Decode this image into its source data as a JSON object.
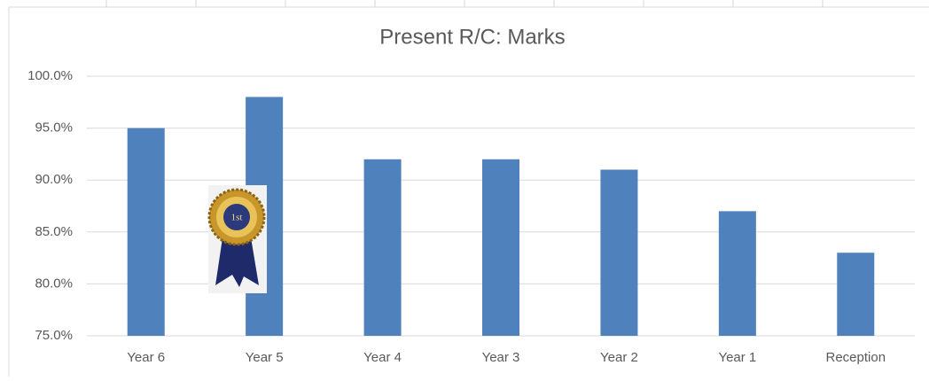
{
  "chart_data": {
    "type": "bar",
    "title": "Present R/C: Marks",
    "categories": [
      "Year 6",
      "Year 5",
      "Year 4",
      "Year 3",
      "Year 2",
      "Year 1",
      "Reception"
    ],
    "values": [
      95,
      98,
      92,
      92,
      91,
      87,
      83
    ],
    "color": "#4f81bd",
    "ylim": [
      75,
      100
    ],
    "yticks": [
      {
        "value": 75,
        "label": "75.0%"
      },
      {
        "value": 80,
        "label": "80.0%"
      },
      {
        "value": 85,
        "label": "85.0%"
      },
      {
        "value": 90,
        "label": "90.0%"
      },
      {
        "value": 95,
        "label": "95.0%"
      },
      {
        "value": 100,
        "label": "100.0%"
      }
    ],
    "grid": true,
    "annotation": "1st"
  }
}
